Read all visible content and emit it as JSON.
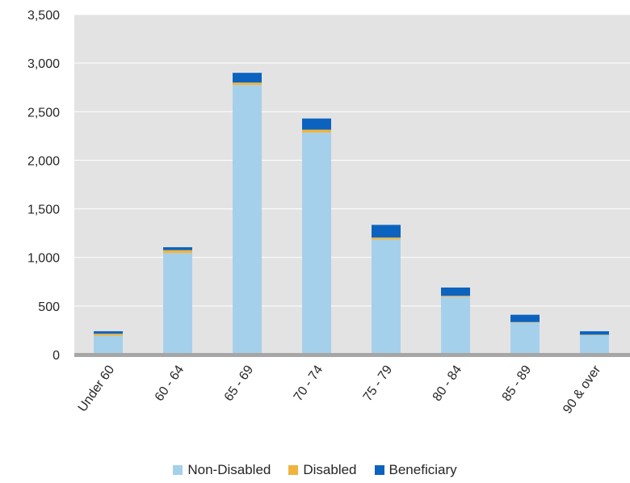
{
  "chart_data": {
    "type": "bar",
    "stacked": true,
    "categories": [
      "Under 60",
      "60 - 64",
      "65 - 69",
      "70 - 74",
      "75 - 79",
      "80 - 84",
      "85 - 89",
      "90 & over"
    ],
    "series": [
      {
        "name": "Non-Disabled",
        "color": "#a5d0ec",
        "values": [
          195,
          1045,
          2775,
          2285,
          1185,
          595,
          330,
          200
        ]
      },
      {
        "name": "Disabled",
        "color": "#f0b43c",
        "values": [
          20,
          30,
          25,
          30,
          20,
          10,
          5,
          5
        ]
      },
      {
        "name": "Beneficiary",
        "color": "#0b63bf",
        "values": [
          25,
          30,
          100,
          115,
          130,
          85,
          75,
          35
        ]
      }
    ],
    "ylim": [
      0,
      3500
    ],
    "yticks": [
      0,
      500,
      1000,
      1500,
      2000,
      2500,
      3000,
      3500
    ],
    "ytick_labels": [
      "0",
      "500",
      "1,000",
      "1,500",
      "2,000",
      "2,500",
      "3,000",
      "3,500"
    ],
    "grid": true,
    "legend_position": "bottom",
    "plot_background": "#e3e3e3",
    "baseline_color": "#a6a6a6"
  }
}
